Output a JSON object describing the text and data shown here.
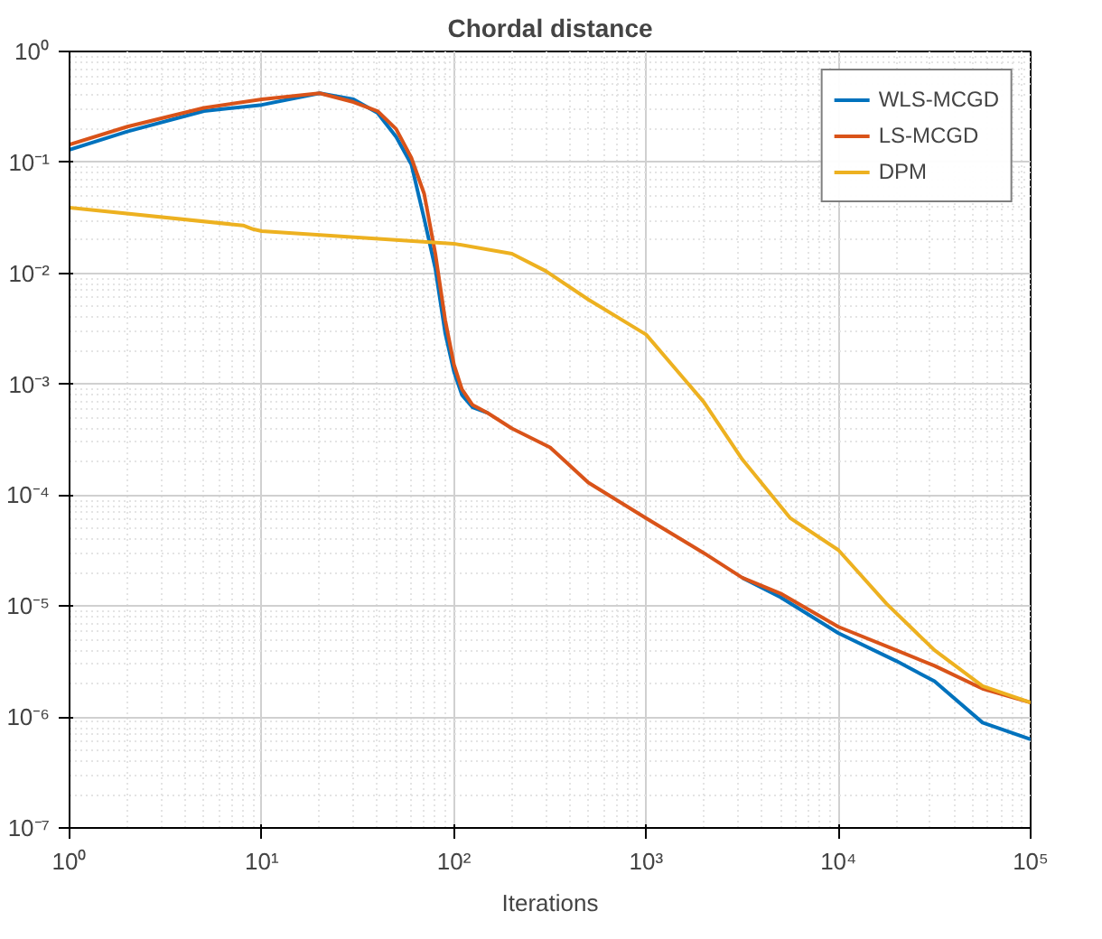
{
  "chart_data": {
    "type": "line",
    "title": "Chordal distance",
    "xlabel": "Iterations",
    "log": "xy",
    "grid": true,
    "legend": "top right",
    "line_style": "solid",
    "marker": "none",
    "xlim": [
      1,
      100000
    ],
    "ylim": [
      1e-07,
      1
    ],
    "xticks": [
      {
        "value": 1,
        "label": "10⁰"
      },
      {
        "value": 10,
        "label": "10¹"
      },
      {
        "value": 100,
        "label": "10²"
      },
      {
        "value": 1000,
        "label": "10³"
      },
      {
        "value": 10000,
        "label": "10⁴"
      },
      {
        "value": 100000,
        "label": "10⁵"
      }
    ],
    "yticks": [
      {
        "value": 1e-07,
        "label": "10⁻⁷"
      },
      {
        "value": 1e-06,
        "label": "10⁻⁶"
      },
      {
        "value": 1e-05,
        "label": "10⁻⁵"
      },
      {
        "value": 0.0001,
        "label": "10⁻⁴"
      },
      {
        "value": 0.001,
        "label": "10⁻³"
      },
      {
        "value": 0.01,
        "label": "10⁻²"
      },
      {
        "value": 0.1,
        "label": "10⁻¹"
      },
      {
        "value": 1,
        "label": "10⁰"
      }
    ],
    "series": [
      {
        "name": "WLS-MCGD",
        "color": "#0072bd",
        "x": [
          1,
          2,
          5,
          10,
          20,
          30,
          40,
          50,
          60,
          70,
          80,
          90,
          100,
          110,
          125,
          150,
          200,
          316,
          500,
          1000,
          2000,
          3162,
          5000,
          10000,
          20000,
          31623,
          56234,
          100000
        ],
        "values": [
          0.13,
          0.19,
          0.29,
          0.33,
          0.42,
          0.37,
          0.28,
          0.17,
          0.096,
          0.031,
          0.011,
          0.0029,
          0.0013,
          0.0008,
          0.00062,
          0.00055,
          null,
          null,
          null,
          null,
          null,
          1.8e-05,
          1.2e-05,
          5.7e-06,
          3.2e-06,
          2.1e-06,
          8.9e-07,
          6.3e-07
        ]
      },
      {
        "name": "LS-MCGD",
        "color": "#d95319",
        "x": [
          1,
          2,
          5,
          10,
          20,
          30,
          40,
          50,
          60,
          70,
          80,
          90,
          100,
          110,
          125,
          150,
          200,
          316,
          500,
          1000,
          2000,
          3162,
          5000,
          10000,
          20000,
          31623,
          56234,
          100000
        ],
        "values": [
          0.145,
          0.21,
          0.31,
          0.37,
          0.42,
          0.35,
          0.29,
          0.2,
          0.11,
          0.052,
          0.015,
          0.0038,
          0.0015,
          0.0009,
          0.00065,
          0.00055,
          0.0004,
          0.00027,
          0.00013,
          6.2e-05,
          3e-05,
          1.8e-05,
          1.3e-05,
          6.5e-06,
          4e-06,
          2.9e-06,
          1.8e-06,
          1.35e-06
        ]
      },
      {
        "name": "DPM",
        "color": "#edb120",
        "x": [
          1,
          8,
          9,
          10,
          100,
          200,
          300,
          500,
          1000,
          1995,
          3162,
          5623,
          10000,
          17783,
          31623,
          56234,
          100000
        ],
        "values": [
          0.039,
          0.027,
          0.025,
          0.024,
          0.0185,
          0.015,
          0.0105,
          0.0058,
          0.0028,
          0.00069,
          0.00021,
          6.2e-05,
          3.2e-05,
          1.05e-05,
          4e-06,
          1.9e-06,
          1.35e-06
        ]
      }
    ]
  }
}
